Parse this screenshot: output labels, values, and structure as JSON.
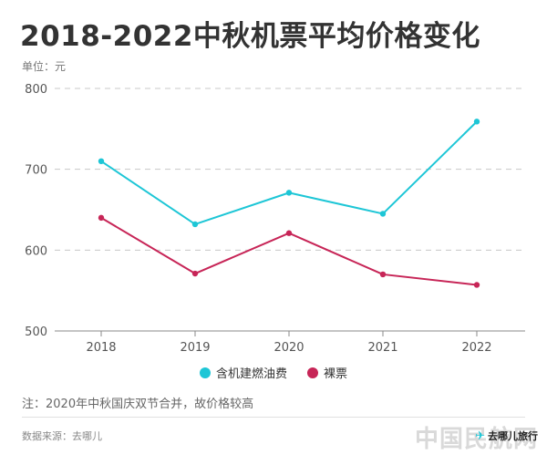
{
  "title": "2018-2022中秋机票平均价格变化",
  "unit_label": "单位：元",
  "note": "注：2020年中秋国庆双节合并，故价格较高",
  "source": "数据来源：去哪儿",
  "brand": {
    "watermark": "中国民航网",
    "logo_text": "去哪儿旅行"
  },
  "chart_data": {
    "type": "line",
    "x": [
      "2018",
      "2019",
      "2020",
      "2021",
      "2022"
    ],
    "ylim": [
      500,
      800
    ],
    "yticks": [
      500,
      600,
      700,
      800
    ],
    "grid": true,
    "legend_position": "bottom",
    "series": [
      {
        "name": "含机建燃油费",
        "color": "#1dc6d6",
        "values": [
          710,
          632,
          671,
          645,
          759
        ]
      },
      {
        "name": "裸票",
        "color": "#c72557",
        "values": [
          640,
          571,
          621,
          570,
          557
        ]
      }
    ]
  }
}
